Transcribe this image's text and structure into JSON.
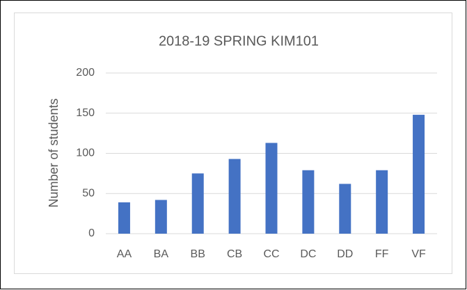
{
  "chart_data": {
    "type": "bar",
    "title": "2018-19 SPRING KIM101",
    "y_label": "Number of students",
    "categories": [
      "AA",
      "BA",
      "BB",
      "CB",
      "CC",
      "DC",
      "DD",
      "FF",
      "VF"
    ],
    "values": [
      39,
      42,
      75,
      93,
      113,
      79,
      62,
      79,
      148
    ],
    "color": "#4472c4",
    "ylim": [
      0,
      200
    ],
    "yticks": [
      0,
      50,
      100,
      150,
      200
    ],
    "grid": true
  }
}
